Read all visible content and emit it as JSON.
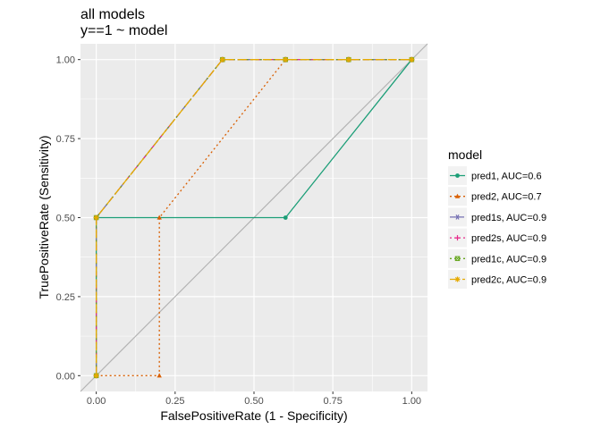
{
  "chart_data": {
    "type": "line",
    "title": "all models",
    "subtitle": "y==1 ~ model",
    "xlabel": "FalsePositiveRate (1 - Specificity)",
    "ylabel": "TruePositiveRate (Sensitivity)",
    "xlim": [
      -0.05,
      1.05
    ],
    "ylim": [
      -0.05,
      1.05
    ],
    "x_ticks": [
      0,
      0.25,
      0.5,
      0.75,
      1
    ],
    "x_tick_labels": [
      "0.00",
      "0.25",
      "0.50",
      "0.75",
      "1.00"
    ],
    "y_ticks": [
      0,
      0.25,
      0.5,
      0.75,
      1
    ],
    "y_tick_labels": [
      "0.00",
      "0.25",
      "0.50",
      "0.75",
      "1.00"
    ],
    "grid": true,
    "panel_background": "#ebebeb",
    "reference_line": {
      "x": [
        -0.05,
        1.05
      ],
      "y": [
        -0.05,
        1.05
      ],
      "color": "#b3b3b3"
    },
    "legend": {
      "title": "model",
      "placement": "right"
    },
    "series": [
      {
        "name": "pred1, AUC=0.6",
        "color": "#1b9e77",
        "dash": "solid",
        "marker": "circle",
        "x": [
          0,
          0,
          0.6,
          1
        ],
        "y": [
          0,
          0.5,
          0.5,
          1
        ]
      },
      {
        "name": "pred2, AUC=0.7",
        "color": "#d95f02",
        "dash": "dotted",
        "marker": "triangle",
        "x": [
          0,
          0.2,
          0.2,
          0.6,
          1
        ],
        "y": [
          0,
          0,
          0.5,
          1,
          1
        ]
      },
      {
        "name": "pred1s, AUC=0.9",
        "color": "#7570b3",
        "dash": "dashed",
        "marker": "star",
        "x": [
          0,
          0,
          0.4,
          0.6,
          0.8,
          1
        ],
        "y": [
          0,
          0.5,
          1,
          1,
          1,
          1
        ]
      },
      {
        "name": "pred2s, AUC=0.9",
        "color": "#e7298a",
        "dash": "dotdash",
        "marker": "cross",
        "x": [
          0,
          0,
          0.4,
          0.6,
          0.8,
          1
        ],
        "y": [
          0,
          0.5,
          1,
          1,
          1,
          1
        ]
      },
      {
        "name": "pred1c, AUC=0.9",
        "color": "#66a61e",
        "dash": "dotted",
        "marker": "square",
        "x": [
          0,
          0,
          0.4,
          0.6,
          0.8,
          1
        ],
        "y": [
          0,
          0.5,
          1,
          1,
          1,
          1
        ]
      },
      {
        "name": "pred2c, AUC=0.9",
        "color": "#e6ab02",
        "dash": "longdash",
        "marker": "asterisk",
        "x": [
          0,
          0,
          0.4,
          0.6,
          0.8,
          1
        ],
        "y": [
          0,
          0.5,
          1,
          1,
          1,
          1
        ]
      }
    ]
  }
}
